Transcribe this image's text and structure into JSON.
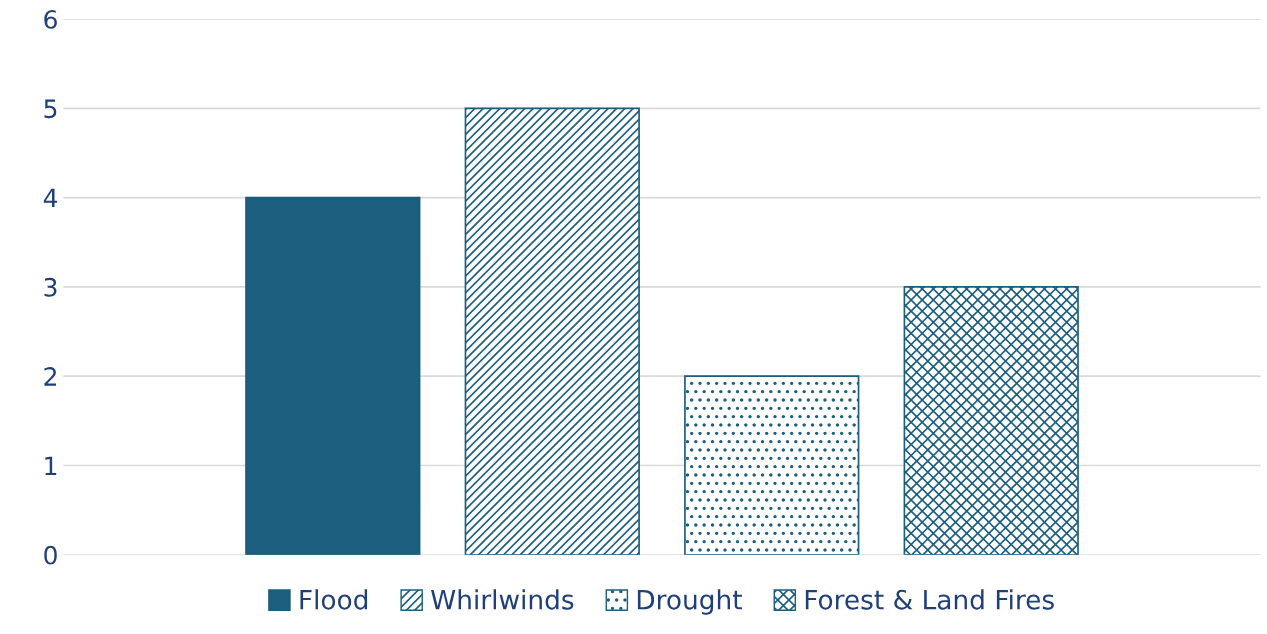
{
  "chart_data": {
    "type": "bar",
    "categories": [
      null
    ],
    "series": [
      {
        "name": "Flood",
        "color": "#1b5e7e",
        "values": [
          4
        ]
      },
      {
        "name": "Whirlwinds",
        "color": "#1b5e7e",
        "values": [
          5
        ]
      },
      {
        "name": "Drought",
        "color": "#1b5e7e",
        "values": [
          2
        ]
      },
      {
        "name": "Forest & Land Fires",
        "color": "#1b5e7e",
        "values": [
          3
        ]
      }
    ],
    "ylim": [
      0,
      6
    ],
    "yticks": [
      0,
      1,
      2,
      3,
      4,
      5,
      6
    ],
    "grid": "y",
    "legend": "bottom"
  }
}
